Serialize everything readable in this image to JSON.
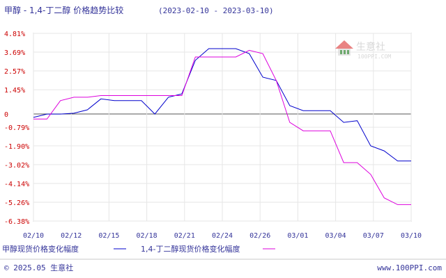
{
  "title": "甲醇 - 1,4-丁二醇 价格趋势比较",
  "date_range": "(2023-02-10 - 2023-03-10)",
  "watermark": {
    "name": "生意社",
    "url": "100PPI.COM"
  },
  "footer": {
    "left": "© 2025.05 生意社",
    "right": "www.100PPI.com"
  },
  "colors": {
    "series1": "#0000cc",
    "series2": "#dd00dd",
    "axis_label": "#cc0000",
    "title": "#333399"
  },
  "chart_data": {
    "type": "line",
    "title": "甲醇 - 1,4-丁二醇 价格趋势比较",
    "y_unit": "%",
    "ylim": [
      -6.38,
      4.81
    ],
    "yticks": [
      "4.81%",
      "3.69%",
      "2.57%",
      "1.45%",
      "0",
      "-0.79%",
      "-1.90%",
      "-3.02%",
      "-4.14%",
      "-5.26%",
      "-6.38%"
    ],
    "ytick_values": [
      4.81,
      3.69,
      2.57,
      1.45,
      0,
      -0.79,
      -1.9,
      -3.02,
      -4.14,
      -5.26,
      -6.38
    ],
    "x_tick_labels": [
      "02/10",
      "02/12",
      "02/15",
      "02/18",
      "02/21",
      "02/24",
      "02/26",
      "03/01",
      "03/04",
      "03/07",
      "03/10"
    ],
    "grid": true,
    "legend": "bottom",
    "series": [
      {
        "name": "甲醇现货价格变化幅度",
        "color": "#0000cc",
        "x": [
          "02/10",
          "02/11",
          "02/12",
          "02/13",
          "02/14",
          "02/15",
          "02/16",
          "02/17",
          "02/18",
          "02/19",
          "02/20",
          "02/21",
          "02/22",
          "02/23",
          "02/24",
          "02/25",
          "02/26",
          "02/27",
          "02/28",
          "03/01",
          "03/02",
          "03/03",
          "03/04",
          "03/05",
          "03/06",
          "03/07",
          "03/08",
          "03/09",
          "03/10"
        ],
        "values": [
          -0.2,
          0.0,
          0.0,
          0.05,
          0.25,
          0.9,
          0.8,
          0.8,
          0.8,
          0.0,
          1.0,
          1.2,
          3.2,
          3.9,
          3.9,
          3.9,
          3.6,
          2.2,
          2.0,
          0.5,
          0.2,
          0.2,
          0.2,
          -0.5,
          -0.4,
          -1.9,
          -2.2,
          -2.8,
          -2.8
        ]
      },
      {
        "name": "1,4-丁二醇现货价格变化幅度",
        "color": "#dd00dd",
        "x": [
          "02/10",
          "02/11",
          "02/12",
          "02/13",
          "02/14",
          "02/15",
          "02/16",
          "02/17",
          "02/18",
          "02/19",
          "02/20",
          "02/21",
          "02/22",
          "02/23",
          "02/24",
          "02/25",
          "02/26",
          "02/27",
          "02/28",
          "03/01",
          "03/02",
          "03/03",
          "03/04",
          "03/05",
          "03/06",
          "03/07",
          "03/08",
          "03/09",
          "03/10"
        ],
        "values": [
          -0.3,
          -0.3,
          0.8,
          1.0,
          1.0,
          1.1,
          1.1,
          1.1,
          1.1,
          1.1,
          1.1,
          1.1,
          3.4,
          3.4,
          3.4,
          3.4,
          3.8,
          3.6,
          2.0,
          -0.5,
          -1.0,
          -1.0,
          -1.0,
          -2.9,
          -2.9,
          -3.6,
          -5.0,
          -5.4,
          -5.4
        ]
      }
    ]
  }
}
